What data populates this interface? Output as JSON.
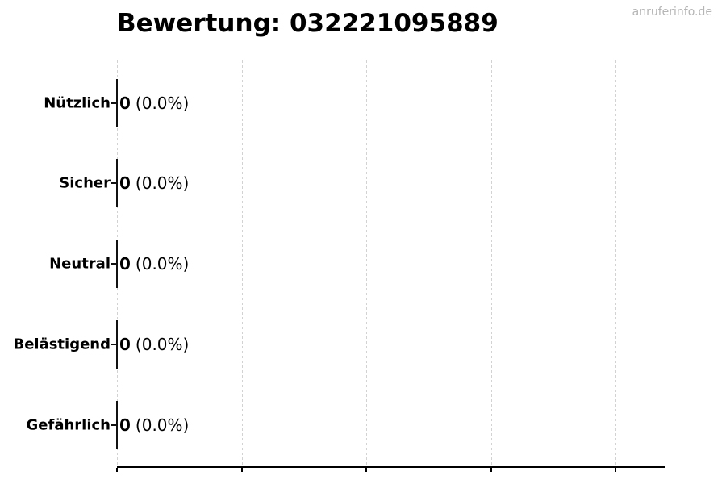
{
  "figure": {
    "title": "Bewertung: 032221095889",
    "watermark": "anruferinfo.de"
  },
  "chart_data": {
    "type": "bar",
    "orientation": "horizontal",
    "title": "Bewertung: 032221095889",
    "categories": [
      "Nützlich",
      "Sicher",
      "Neutral",
      "Belästigend",
      "Gefährlich"
    ],
    "values": [
      0,
      0,
      0,
      0,
      0
    ],
    "bar_labels": [
      {
        "count": "0",
        "percent": "(0.0%)"
      },
      {
        "count": "0",
        "percent": "(0.0%)"
      },
      {
        "count": "0",
        "percent": "(0.0%)"
      },
      {
        "count": "0",
        "percent": "(0.0%)"
      },
      {
        "count": "0",
        "percent": "(0.0%)"
      }
    ],
    "xlabel": "",
    "ylabel": "",
    "grid": true,
    "gridline_count": 5,
    "x_tick_labels_visible": false,
    "legend": false,
    "colors": {
      "text": "#000000",
      "bar_edge": "#111111",
      "gridline": "#d2d2d2",
      "axis_line": "#000000",
      "watermark": "#b5b5b5",
      "background": "#ffffff"
    }
  }
}
